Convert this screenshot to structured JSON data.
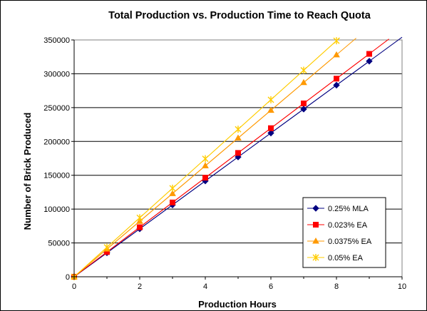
{
  "chart_data": {
    "type": "line",
    "title": "Total Production vs. Production Time to Reach Quota",
    "xlabel": "Production Hours",
    "ylabel": "Number of Brick Produced",
    "xlim": [
      0,
      10
    ],
    "ylim": [
      0,
      350000
    ],
    "xticks": [
      0,
      2,
      4,
      6,
      8,
      10
    ],
    "yticks": [
      0,
      50000,
      100000,
      150000,
      200000,
      250000,
      300000,
      350000
    ],
    "grid": "horizontal",
    "legend_position": "lower-right",
    "series": [
      {
        "name": "0.25% MLA",
        "color": "#000080",
        "marker": "diamond",
        "points": [
          [
            0,
            0
          ],
          [
            1,
            35400
          ],
          [
            2,
            70800
          ],
          [
            3,
            106200
          ],
          [
            4,
            141600
          ],
          [
            5,
            177000
          ],
          [
            6,
            212400
          ],
          [
            7,
            247800
          ],
          [
            8,
            283200
          ],
          [
            9,
            318600
          ]
        ],
        "trend_end": [
          10,
          354000
        ]
      },
      {
        "name": "0.023% EA",
        "color": "#FF0000",
        "marker": "square",
        "points": [
          [
            0,
            0
          ],
          [
            1,
            36600
          ],
          [
            2,
            73200
          ],
          [
            3,
            109800
          ],
          [
            4,
            146400
          ],
          [
            5,
            183000
          ],
          [
            6,
            219600
          ],
          [
            7,
            256200
          ],
          [
            8,
            292800
          ],
          [
            9,
            329400
          ]
        ],
        "trend_end": [
          9.6,
          351360
        ]
      },
      {
        "name": "0.0375% EA",
        "color": "#FF9900",
        "marker": "triangle",
        "points": [
          [
            0,
            0
          ],
          [
            1,
            41000
          ],
          [
            2,
            82000
          ],
          [
            3,
            123000
          ],
          [
            4,
            164000
          ],
          [
            5,
            205000
          ],
          [
            6,
            246000
          ],
          [
            7,
            287000
          ],
          [
            8,
            328000
          ]
        ],
        "trend_end": [
          8.6,
          352600
        ]
      },
      {
        "name": "0.05% EA",
        "color": "#FFCC00",
        "marker": "star",
        "points": [
          [
            0,
            0
          ],
          [
            1,
            43600
          ],
          [
            2,
            87200
          ],
          [
            3,
            130800
          ],
          [
            4,
            174400
          ],
          [
            5,
            218000
          ],
          [
            6,
            261600
          ],
          [
            7,
            305200
          ],
          [
            8,
            348800
          ]
        ],
        "trend_end": [
          8.1,
          353160
        ]
      }
    ]
  }
}
